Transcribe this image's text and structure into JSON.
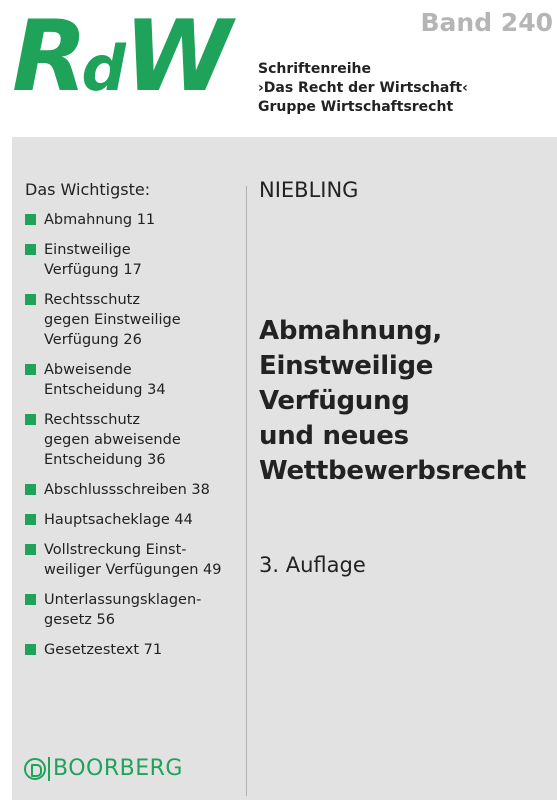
{
  "logo": {
    "big1": "R",
    "small": "d",
    "big2": "W"
  },
  "band": "Band 240",
  "series": {
    "line1": "Schriftenreihe",
    "line2": "›Das Recht der Wirtschaft‹",
    "line3": "Gruppe Wirtschaftsrecht"
  },
  "toc": {
    "title": "Das Wichtigste:",
    "items": [
      {
        "lines": [
          "Abmahnung  11"
        ]
      },
      {
        "lines": [
          "Einstweilige",
          "Verfügung  17"
        ]
      },
      {
        "lines": [
          "Rechtsschutz",
          "gegen Einstweilige",
          "Verfügung  26"
        ]
      },
      {
        "lines": [
          "Abweisende",
          "Entscheidung  34"
        ]
      },
      {
        "lines": [
          "Rechtsschutz",
          "gegen abweisende",
          "Entscheidung  36"
        ]
      },
      {
        "lines": [
          "Abschlussschreiben  38"
        ]
      },
      {
        "lines": [
          "Hauptsacheklage  44"
        ]
      },
      {
        "lines": [
          "Vollstreckung Einst-",
          "weiliger Verfügungen  49"
        ]
      },
      {
        "lines": [
          "Unterlassungsklagen-",
          "gesetz  56"
        ]
      },
      {
        "lines": [
          "Gesetzestext  71"
        ]
      }
    ]
  },
  "author": "NIEBLING",
  "title": {
    "line1": "Abmahnung,",
    "line2": "Einstweilige",
    "line3": "Verfügung",
    "line4": "und neues",
    "line5": "Wettbewerbsrecht"
  },
  "edition": "3. Auflage",
  "publisher": "BOORBERG",
  "colors": {
    "brand_green": "#1fa35b",
    "panel_gray": "#e2e2e2",
    "band_gray": "#b5b5b5"
  }
}
